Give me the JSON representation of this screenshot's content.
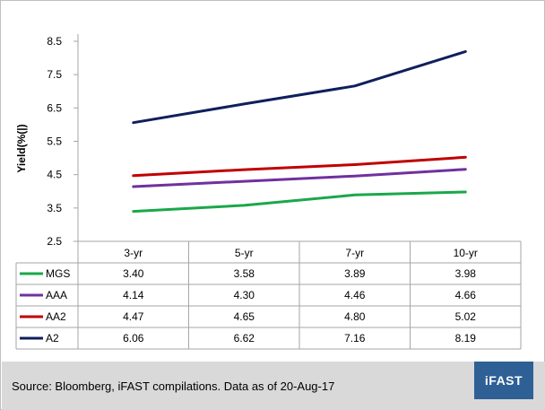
{
  "chart_data": {
    "type": "line",
    "title": "",
    "xlabel": "",
    "ylabel": "Yield(%(|)",
    "ylim": [
      2.5,
      8.5
    ],
    "yticks": [
      "8.5",
      "7.5",
      "6.5",
      "5.5",
      "4.5",
      "3.5",
      "2.5"
    ],
    "categories": [
      "3-yr",
      "5-yr",
      "7-yr",
      "10-yr"
    ],
    "grid": false,
    "legend": "data-table",
    "series": [
      {
        "name": "MGS",
        "color": "#1aa84a",
        "values": [
          3.4,
          3.58,
          3.89,
          3.98
        ],
        "labels": [
          "3.40",
          "3.58",
          "3.89",
          "3.98"
        ]
      },
      {
        "name": "AAA",
        "color": "#7030a0",
        "values": [
          4.14,
          4.3,
          4.46,
          4.66
        ],
        "labels": [
          "4.14",
          "4.30",
          "4.46",
          "4.66"
        ]
      },
      {
        "name": "AA2",
        "color": "#c00000",
        "values": [
          4.47,
          4.65,
          4.8,
          5.02
        ],
        "labels": [
          "4.47",
          "4.65",
          "4.80",
          "5.02"
        ]
      },
      {
        "name": "A2",
        "color": "#0f1f5c",
        "values": [
          6.06,
          6.62,
          7.16,
          8.19
        ],
        "labels": [
          "6.06",
          "6.62",
          "7.16",
          "8.19"
        ]
      }
    ]
  },
  "footer": {
    "source": "Source: Bloomberg, iFAST compilations. Data as of  20-Aug-17",
    "logo": "iFAST"
  }
}
